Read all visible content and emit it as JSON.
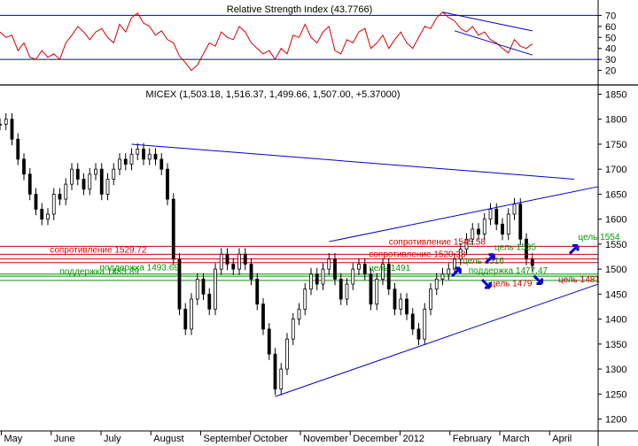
{
  "chart_data": [
    {
      "type": "line",
      "title": "Relative Strength Index (43.7766)",
      "ylim": [
        10,
        80
      ],
      "yticks": [
        20,
        30,
        40,
        50,
        60,
        70
      ],
      "levels": [
        30,
        70
      ],
      "colors": {
        "line": "#d40000",
        "level": "#0000cc",
        "trend": "#0000cc"
      },
      "months": [
        "May",
        "June",
        "July",
        "August",
        "September",
        "October",
        "November",
        "December",
        "2012",
        "February",
        "March",
        "April"
      ],
      "series": [
        {
          "name": "RSI",
          "points": [
            [
              0,
              55
            ],
            [
              3,
              50
            ],
            [
              6,
              52
            ],
            [
              9,
              38
            ],
            [
              12,
              45
            ],
            [
              15,
              32
            ],
            [
              18,
              30
            ],
            [
              21,
              38
            ],
            [
              24,
              32
            ],
            [
              27,
              35
            ],
            [
              30,
              30
            ],
            [
              33,
              45
            ],
            [
              36,
              52
            ],
            [
              39,
              60
            ],
            [
              42,
              55
            ],
            [
              45,
              48
            ],
            [
              48,
              55
            ],
            [
              51,
              58
            ],
            [
              54,
              50
            ],
            [
              57,
              45
            ],
            [
              60,
              62
            ],
            [
              63,
              55
            ],
            [
              66,
              68
            ],
            [
              69,
              72
            ],
            [
              72,
              63
            ],
            [
              75,
              60
            ],
            [
              78,
              52
            ],
            [
              81,
              56
            ],
            [
              84,
              48
            ],
            [
              87,
              45
            ],
            [
              90,
              33
            ],
            [
              93,
              27
            ],
            [
              96,
              20
            ],
            [
              99,
              25
            ],
            [
              102,
              35
            ],
            [
              105,
              45
            ],
            [
              108,
              42
            ],
            [
              111,
              55
            ],
            [
              114,
              50
            ],
            [
              117,
              48
            ],
            [
              120,
              60
            ],
            [
              123,
              55
            ],
            [
              126,
              45
            ],
            [
              129,
              40
            ],
            [
              132,
              35
            ],
            [
              135,
              38
            ],
            [
              138,
              30
            ],
            [
              141,
              40
            ],
            [
              144,
              35
            ],
            [
              147,
              52
            ],
            [
              150,
              50
            ],
            [
              153,
              62
            ],
            [
              156,
              50
            ],
            [
              159,
              45
            ],
            [
              162,
              55
            ],
            [
              165,
              60
            ],
            [
              168,
              38
            ],
            [
              171,
              35
            ],
            [
              174,
              48
            ],
            [
              177,
              45
            ],
            [
              180,
              55
            ],
            [
              183,
              58
            ],
            [
              186,
              40
            ],
            [
              189,
              45
            ],
            [
              192,
              52
            ],
            [
              195,
              40
            ],
            [
              198,
              48
            ],
            [
              201,
              55
            ],
            [
              204,
              45
            ],
            [
              207,
              40
            ],
            [
              210,
              50
            ],
            [
              213,
              60
            ],
            [
              216,
              58
            ],
            [
              219,
              68
            ],
            [
              222,
              73
            ],
            [
              225,
              68
            ],
            [
              228,
              65
            ],
            [
              231,
              58
            ],
            [
              234,
              55
            ],
            [
              237,
              60
            ],
            [
              240,
              52
            ],
            [
              243,
              55
            ],
            [
              246,
              48
            ],
            [
              249,
              45
            ],
            [
              252,
              40
            ],
            [
              255,
              36
            ],
            [
              258,
              48
            ],
            [
              261,
              42
            ],
            [
              264,
              40
            ],
            [
              267,
              44
            ]
          ]
        }
      ],
      "trendlines": [
        {
          "x": [
            222,
            267
          ],
          "y": [
            73,
            56
          ]
        },
        {
          "x": [
            228,
            267
          ],
          "y": [
            56,
            34
          ]
        }
      ]
    },
    {
      "type": "candlestick",
      "title": "MICEX (1,503.18, 1,516.37, 1,499.66, 1,507.00, +5.37000)",
      "ylim": [
        1185,
        1865
      ],
      "yticks": [
        1200,
        1250,
        1300,
        1350,
        1400,
        1450,
        1500,
        1550,
        1600,
        1650,
        1700,
        1750,
        1800,
        1850
      ],
      "months": [
        "May",
        "June",
        "July",
        "August",
        "September",
        "October",
        "November",
        "December",
        "2012",
        "February",
        "March",
        "April"
      ],
      "colors": {
        "resistance": "#cc0000",
        "support": "#009900",
        "trend": "#0000cc",
        "target": "#0000cc",
        "target_label": "#cc0000"
      },
      "levels": [
        {
          "name": "resistance",
          "value": 1545.58,
          "color": "#cc0000"
        },
        {
          "name": "resistance",
          "value": 1529.72,
          "color": "#cc0000"
        },
        {
          "name": "resistance",
          "value": 1520.38,
          "color": "#cc0000"
        },
        {
          "name": "resistance",
          "value": 1513,
          "color": "#cc0000"
        },
        {
          "name": "support",
          "value": 1490,
          "color": "#009900"
        },
        {
          "name": "support",
          "value": 1485.89,
          "color": "#009900"
        },
        {
          "name": "support",
          "value": 1477.47,
          "color": "#009900"
        }
      ],
      "series": [
        {
          "name": "close",
          "points": [
            [
              0,
              1790
            ],
            [
              3,
              1800
            ],
            [
              6,
              1760
            ],
            [
              9,
              1720
            ],
            [
              12,
              1690
            ],
            [
              15,
              1650
            ],
            [
              18,
              1620
            ],
            [
              21,
              1600
            ],
            [
              24,
              1610
            ],
            [
              27,
              1650
            ],
            [
              30,
              1640
            ],
            [
              33,
              1670
            ],
            [
              36,
              1700
            ],
            [
              39,
              1680
            ],
            [
              42,
              1660
            ],
            [
              45,
              1690
            ],
            [
              48,
              1700
            ],
            [
              51,
              1650
            ],
            [
              54,
              1680
            ],
            [
              57,
              1700
            ],
            [
              60,
              1720
            ],
            [
              63,
              1710
            ],
            [
              66,
              1730
            ],
            [
              69,
              1740
            ],
            [
              72,
              1720
            ],
            [
              75,
              1730
            ],
            [
              78,
              1720
            ],
            [
              81,
              1700
            ],
            [
              84,
              1640
            ],
            [
              87,
              1520
            ],
            [
              90,
              1420
            ],
            [
              93,
              1380
            ],
            [
              96,
              1440
            ],
            [
              99,
              1480
            ],
            [
              102,
              1450
            ],
            [
              105,
              1420
            ],
            [
              108,
              1500
            ],
            [
              111,
              1530
            ],
            [
              114,
              1510
            ],
            [
              117,
              1500
            ],
            [
              120,
              1530
            ],
            [
              123,
              1510
            ],
            [
              126,
              1480
            ],
            [
              129,
              1430
            ],
            [
              132,
              1380
            ],
            [
              135,
              1330
            ],
            [
              138,
              1260
            ],
            [
              141,
              1300
            ],
            [
              144,
              1360
            ],
            [
              147,
              1400
            ],
            [
              150,
              1420
            ],
            [
              153,
              1460
            ],
            [
              156,
              1490
            ],
            [
              159,
              1470
            ],
            [
              162,
              1500
            ],
            [
              165,
              1520
            ],
            [
              168,
              1480
            ],
            [
              171,
              1440
            ],
            [
              174,
              1470
            ],
            [
              177,
              1500
            ],
            [
              180,
              1510
            ],
            [
              183,
              1490
            ],
            [
              186,
              1430
            ],
            [
              189,
              1480
            ],
            [
              192,
              1510
            ],
            [
              195,
              1460
            ],
            [
              198,
              1420
            ],
            [
              201,
              1440
            ],
            [
              204,
              1410
            ],
            [
              207,
              1380
            ],
            [
              210,
              1360
            ],
            [
              213,
              1420
            ],
            [
              216,
              1460
            ],
            [
              219,
              1480
            ],
            [
              222,
              1490
            ],
            [
              225,
              1500
            ],
            [
              228,
              1520
            ],
            [
              231,
              1540
            ],
            [
              234,
              1560
            ],
            [
              237,
              1580
            ],
            [
              240,
              1570
            ],
            [
              243,
              1600
            ],
            [
              246,
              1620
            ],
            [
              249,
              1590
            ],
            [
              252,
              1570
            ],
            [
              255,
              1610
            ],
            [
              258,
              1630
            ],
            [
              261,
              1560
            ],
            [
              264,
              1520
            ],
            [
              267,
              1507
            ]
          ]
        }
      ],
      "trendlines": [
        {
          "x": [
            66,
            288
          ],
          "y": [
            1750,
            1680
          ]
        },
        {
          "x": [
            138,
            300
          ],
          "y": [
            1245,
            1470
          ]
        },
        {
          "x": [
            165,
            300
          ],
          "y": [
            1555,
            1665
          ]
        }
      ],
      "annotations": [
        {
          "text": "сопротивление 1529.72",
          "x": 25,
          "y": 1529.72,
          "color": "#cc0000"
        },
        {
          "text": "сопротивление 1545.58",
          "x": 195,
          "y": 1545.58,
          "color": "#cc0000"
        },
        {
          "text": "сопротивление 1520.38",
          "x": 185,
          "y": 1520.38,
          "color": "#cc0000"
        },
        {
          "text": "поддержка 1493.69",
          "x": 50,
          "y": 1493.69,
          "color": "#009900"
        },
        {
          "text": "поддержка 1485.89",
          "x": 30,
          "y": 1485.89,
          "color": "#009900"
        },
        {
          "text": "цель 1491",
          "x": 185,
          "y": 1493,
          "color": "#009900"
        },
        {
          "text": "цель 1516",
          "x": 232,
          "y": 1507,
          "color": "#009900"
        },
        {
          "text": "поддержка 1477.47",
          "x": 235,
          "y": 1488,
          "color": "#009900"
        },
        {
          "text": "цель 1535",
          "x": 248,
          "y": 1535,
          "color": "#009900"
        },
        {
          "text": "цель 1554",
          "x": 290,
          "y": 1555,
          "color": "#009900"
        },
        {
          "text": "цель 1479",
          "x": 246,
          "y": 1462,
          "color": "#cc0000"
        },
        {
          "text": "цель 1481",
          "x": 280,
          "y": 1470,
          "color": "#cc0000"
        }
      ]
    }
  ]
}
